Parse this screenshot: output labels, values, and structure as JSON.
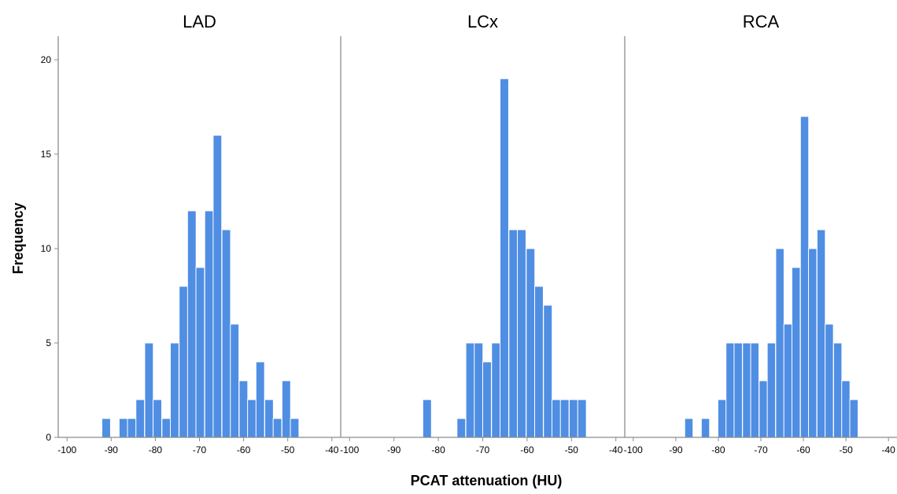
{
  "chart_data": {
    "type": "bar",
    "bar_color": "#4f8ee3",
    "axis_color": "#8c8c8c",
    "xlabel": "PCAT attenuation (HU)",
    "ylabel": "Frequency",
    "xlim": [
      -102,
      -38
    ],
    "ylim": [
      0,
      21
    ],
    "xticks": [
      -100,
      -90,
      -80,
      -70,
      -60,
      -50,
      -40
    ],
    "yticks": [
      0,
      5,
      10,
      15,
      20
    ],
    "bin_width": 1.94,
    "panels": [
      {
        "name": "LAD",
        "bins": [
          {
            "x0": -92.1,
            "count": 1
          },
          {
            "x0": -88.2,
            "count": 1
          },
          {
            "x0": -86.3,
            "count": 1
          },
          {
            "x0": -84.4,
            "count": 2
          },
          {
            "x0": -82.4,
            "count": 5
          },
          {
            "x0": -80.5,
            "count": 2
          },
          {
            "x0": -78.5,
            "count": 1
          },
          {
            "x0": -76.6,
            "count": 5
          },
          {
            "x0": -74.6,
            "count": 8
          },
          {
            "x0": -72.7,
            "count": 12
          },
          {
            "x0": -70.8,
            "count": 9
          },
          {
            "x0": -68.8,
            "count": 12
          },
          {
            "x0": -66.9,
            "count": 16
          },
          {
            "x0": -64.9,
            "count": 11
          },
          {
            "x0": -63.0,
            "count": 6
          },
          {
            "x0": -61.0,
            "count": 3
          },
          {
            "x0": -59.1,
            "count": 2
          },
          {
            "x0": -57.2,
            "count": 4
          },
          {
            "x0": -55.2,
            "count": 2
          },
          {
            "x0": -53.3,
            "count": 1
          },
          {
            "x0": -51.3,
            "count": 3
          },
          {
            "x0": -49.4,
            "count": 1
          }
        ]
      },
      {
        "name": "LCx",
        "bins": [
          {
            "x0": -83.5,
            "count": 2
          },
          {
            "x0": -75.8,
            "count": 1
          },
          {
            "x0": -73.8,
            "count": 5
          },
          {
            "x0": -71.9,
            "count": 5
          },
          {
            "x0": -70.0,
            "count": 4
          },
          {
            "x0": -68.0,
            "count": 5
          },
          {
            "x0": -66.1,
            "count": 19
          },
          {
            "x0": -64.1,
            "count": 11
          },
          {
            "x0": -62.2,
            "count": 11
          },
          {
            "x0": -60.2,
            "count": 10
          },
          {
            "x0": -58.3,
            "count": 8
          },
          {
            "x0": -56.3,
            "count": 7
          },
          {
            "x0": -54.4,
            "count": 2
          },
          {
            "x0": -52.5,
            "count": 2
          },
          {
            "x0": -50.5,
            "count": 2
          },
          {
            "x0": -48.6,
            "count": 2
          }
        ]
      },
      {
        "name": "RCA",
        "bins": [
          {
            "x0": -87.9,
            "count": 1
          },
          {
            "x0": -84.0,
            "count": 1
          },
          {
            "x0": -80.1,
            "count": 2
          },
          {
            "x0": -78.2,
            "count": 5
          },
          {
            "x0": -76.3,
            "count": 5
          },
          {
            "x0": -74.3,
            "count": 5
          },
          {
            "x0": -72.4,
            "count": 5
          },
          {
            "x0": -70.4,
            "count": 3
          },
          {
            "x0": -68.5,
            "count": 5
          },
          {
            "x0": -66.5,
            "count": 10
          },
          {
            "x0": -64.6,
            "count": 6
          },
          {
            "x0": -62.7,
            "count": 9
          },
          {
            "x0": -60.7,
            "count": 17
          },
          {
            "x0": -58.8,
            "count": 10
          },
          {
            "x0": -56.8,
            "count": 11
          },
          {
            "x0": -54.9,
            "count": 6
          },
          {
            "x0": -52.9,
            "count": 5
          },
          {
            "x0": -51.0,
            "count": 3
          },
          {
            "x0": -49.1,
            "count": 2
          }
        ]
      }
    ]
  }
}
